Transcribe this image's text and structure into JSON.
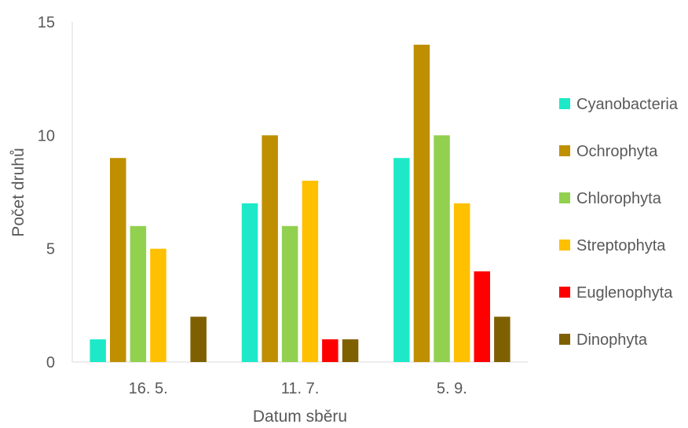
{
  "chart_data": {
    "type": "bar",
    "title": "",
    "xlabel": "Datum sběru",
    "ylabel": "Počet druhů",
    "ylim": [
      0,
      15
    ],
    "yticks": [
      0,
      5,
      10,
      15
    ],
    "grid": false,
    "legend_position": "right",
    "categories": [
      "16. 5.",
      "11. 7.",
      "5. 9."
    ],
    "series": [
      {
        "name": "Cyanobacteria",
        "color": "#1DE9C8",
        "values": [
          1,
          7,
          9
        ]
      },
      {
        "name": "Ochrophyta",
        "color": "#BF8F00",
        "values": [
          9,
          10,
          14
        ]
      },
      {
        "name": "Chlorophyta",
        "color": "#92D050",
        "values": [
          6,
          6,
          10
        ]
      },
      {
        "name": "Streptophyta",
        "color": "#FFC000",
        "values": [
          5,
          8,
          7
        ]
      },
      {
        "name": "Euglenophyta",
        "color": "#FF0000",
        "values": [
          0,
          1,
          4
        ]
      },
      {
        "name": "Dinophyta",
        "color": "#7F6000",
        "values": [
          2,
          1,
          2
        ]
      }
    ]
  }
}
